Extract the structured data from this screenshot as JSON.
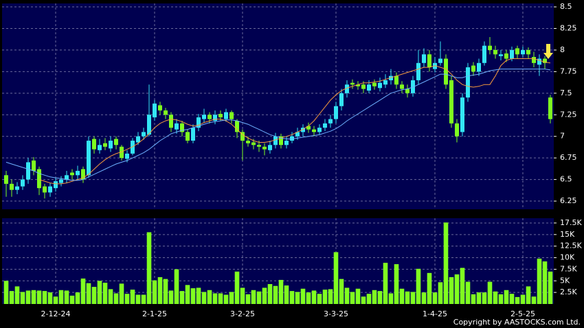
{
  "chart_data": [
    {
      "type": "candlestick",
      "up_color": "#33e6f5",
      "down_color": "#7fff1f",
      "open": [
        6.55,
        6.45,
        6.38,
        6.42,
        6.5,
        6.72,
        6.62,
        6.42,
        6.35,
        6.4,
        6.46,
        6.5,
        6.58,
        6.55,
        6.62,
        6.55,
        6.97,
        6.84,
        6.92,
        6.86,
        6.97,
        6.88,
        6.74,
        6.8,
        6.93,
        7.0,
        7.02,
        7.22,
        7.36,
        7.3,
        7.25,
        7.08,
        7.15,
        7.05,
        6.95,
        7.1,
        7.2,
        7.25,
        7.18,
        7.26,
        7.2,
        7.28,
        7.18,
        7.05,
        6.95,
        6.93,
        6.9,
        6.88,
        6.84,
        6.9,
        7.0,
        6.9,
        6.95,
        7.0,
        7.05,
        7.12,
        7.08,
        7.05,
        7.1,
        7.15,
        7.2,
        7.35,
        7.5,
        7.62,
        7.6,
        7.6,
        7.53,
        7.62,
        7.56,
        7.6,
        7.65,
        7.7,
        7.6,
        7.55,
        7.5,
        7.65,
        7.85,
        7.95,
        7.78,
        7.85,
        7.9,
        7.65,
        7.15,
        7.05,
        7.45,
        7.82,
        7.75,
        7.85,
        8.05,
        8.0,
        7.93,
        7.96,
        7.9,
        8.02,
        7.95,
        8.0,
        7.92,
        7.83,
        7.9,
        7.45
      ],
      "high": [
        6.6,
        6.5,
        6.47,
        6.55,
        6.75,
        6.76,
        6.65,
        6.45,
        6.46,
        6.52,
        6.54,
        6.6,
        6.62,
        6.66,
        6.65,
        7.0,
        7.0,
        6.97,
        6.98,
        7.0,
        7.0,
        6.9,
        6.84,
        6.98,
        7.05,
        7.1,
        7.6,
        7.42,
        7.4,
        7.33,
        7.28,
        7.2,
        7.18,
        7.08,
        7.14,
        7.26,
        7.32,
        7.28,
        7.3,
        7.3,
        7.32,
        7.3,
        7.2,
        7.08,
        7.0,
        6.97,
        6.95,
        6.92,
        6.95,
        7.04,
        7.03,
        7.0,
        7.05,
        7.1,
        7.14,
        7.16,
        7.12,
        7.14,
        7.2,
        7.25,
        7.4,
        7.55,
        7.65,
        7.66,
        7.64,
        7.64,
        7.65,
        7.66,
        7.68,
        7.72,
        7.78,
        7.74,
        7.64,
        7.6,
        7.7,
        8.0,
        8.02,
        8.0,
        7.92,
        8.1,
        7.95,
        7.7,
        7.2,
        7.5,
        7.85,
        7.86,
        7.9,
        8.1,
        8.15,
        8.05,
        8.0,
        8.0,
        8.04,
        8.05,
        8.04,
        8.03,
        7.98,
        7.95,
        7.93,
        7.48
      ],
      "low": [
        6.3,
        6.3,
        6.33,
        6.38,
        6.45,
        6.55,
        6.32,
        6.28,
        6.3,
        6.36,
        6.42,
        6.46,
        6.5,
        6.5,
        6.46,
        6.52,
        6.8,
        6.8,
        6.84,
        6.82,
        6.85,
        6.72,
        6.7,
        6.78,
        6.9,
        6.96,
        7.0,
        7.18,
        7.25,
        7.2,
        7.05,
        7.03,
        7.0,
        6.92,
        6.92,
        7.06,
        7.16,
        7.15,
        7.14,
        7.18,
        7.17,
        7.15,
        6.98,
        6.72,
        6.88,
        6.85,
        6.82,
        6.78,
        6.8,
        6.86,
        6.86,
        6.86,
        6.92,
        6.96,
        7.0,
        7.04,
        7.0,
        7.02,
        7.06,
        7.1,
        7.15,
        7.3,
        7.45,
        7.55,
        7.54,
        7.5,
        7.5,
        7.54,
        7.52,
        7.56,
        7.6,
        7.55,
        7.5,
        7.45,
        7.46,
        7.6,
        7.8,
        7.75,
        7.74,
        7.82,
        7.55,
        7.1,
        6.93,
        7.0,
        7.4,
        7.7,
        7.7,
        7.82,
        7.95,
        7.9,
        7.88,
        7.86,
        7.87,
        7.9,
        7.92,
        7.9,
        7.8,
        7.7,
        7.78,
        7.15
      ],
      "close": [
        6.45,
        6.38,
        6.42,
        6.5,
        6.7,
        6.6,
        6.4,
        6.35,
        6.42,
        6.48,
        6.5,
        6.55,
        6.55,
        6.6,
        6.5,
        6.95,
        6.85,
        6.9,
        6.88,
        6.95,
        6.9,
        6.75,
        6.8,
        6.95,
        7.0,
        7.05,
        7.25,
        7.38,
        7.3,
        7.25,
        7.1,
        7.15,
        7.05,
        6.95,
        7.1,
        7.22,
        7.25,
        7.2,
        7.25,
        7.22,
        7.28,
        7.2,
        7.05,
        6.95,
        6.92,
        6.9,
        6.88,
        6.85,
        6.9,
        7.0,
        6.9,
        6.95,
        7.0,
        7.05,
        7.1,
        7.08,
        7.05,
        7.1,
        7.15,
        7.2,
        7.35,
        7.5,
        7.6,
        7.6,
        7.58,
        7.55,
        7.6,
        7.58,
        7.62,
        7.65,
        7.7,
        7.6,
        7.55,
        7.5,
        7.65,
        7.85,
        7.95,
        7.8,
        7.85,
        7.9,
        7.6,
        7.15,
        7.0,
        7.45,
        7.8,
        7.75,
        7.85,
        8.05,
        8.0,
        7.95,
        7.95,
        7.9,
        8.0,
        7.95,
        8.0,
        7.95,
        7.85,
        7.9,
        7.85,
        7.2
      ],
      "series": [
        {
          "color": "#f59a3c",
          "values": [
            null,
            null,
            null,
            null,
            null,
            null,
            6.5,
            6.48,
            6.46,
            6.45,
            6.45,
            6.46,
            6.48,
            6.5,
            6.52,
            6.56,
            6.62,
            6.68,
            6.73,
            6.77,
            6.8,
            6.82,
            6.85,
            6.88,
            6.92,
            6.97,
            7.03,
            7.1,
            7.15,
            7.18,
            7.2,
            7.19,
            7.17,
            7.14,
            7.12,
            7.13,
            7.16,
            7.18,
            7.2,
            7.2,
            7.18,
            7.14,
            7.08,
            7.02,
            6.98,
            6.95,
            6.93,
            6.93,
            6.94,
            6.96,
            6.98,
            7.0,
            7.02,
            7.05,
            7.08,
            7.12,
            7.18,
            7.26,
            7.34,
            7.42,
            7.48,
            7.53,
            7.56,
            7.58,
            7.6,
            7.62,
            7.62,
            7.63,
            7.64,
            7.66,
            7.68,
            7.7,
            7.72,
            7.74,
            7.76,
            7.78,
            7.8,
            7.8,
            7.82,
            7.8,
            7.78,
            7.72,
            7.65,
            7.6,
            7.58,
            7.57,
            7.58,
            7.6,
            7.6,
            7.7,
            7.82,
            7.88,
            7.9,
            7.9,
            7.9,
            7.9,
            7.9,
            7.88,
            7.86,
            7.85
          ]
        },
        {
          "color": "#6fb2ff",
          "values": [
            6.7,
            6.68,
            6.66,
            6.64,
            6.62,
            6.6,
            6.57,
            6.55,
            6.53,
            6.52,
            6.51,
            6.5,
            6.49,
            6.49,
            6.5,
            6.53,
            6.56,
            6.59,
            6.62,
            6.65,
            6.68,
            6.7,
            6.72,
            6.75,
            6.78,
            6.81,
            6.85,
            6.9,
            6.95,
            6.99,
            7.03,
            7.05,
            7.07,
            7.08,
            7.1,
            7.12,
            7.14,
            7.16,
            7.17,
            7.18,
            7.19,
            7.19,
            7.18,
            7.16,
            7.14,
            7.11,
            7.08,
            7.05,
            7.02,
            7.0,
            6.98,
            6.97,
            6.97,
            6.98,
            6.99,
            7.0,
            7.01,
            7.02,
            7.04,
            7.06,
            7.09,
            7.13,
            7.18,
            7.22,
            7.26,
            7.3,
            7.34,
            7.38,
            7.42,
            7.46,
            7.5,
            7.52,
            7.54,
            7.55,
            7.57,
            7.6,
            7.63,
            7.66,
            7.69,
            7.72,
            7.72,
            7.7,
            7.68,
            7.68,
            7.7,
            7.71,
            7.72,
            7.74,
            7.76,
            7.77,
            7.78,
            7.78,
            7.78,
            7.78,
            7.78,
            7.78,
            7.78,
            7.78,
            7.78,
            7.77
          ]
        }
      ],
      "ylim": [
        6.155,
        8.54
      ],
      "yticks": [
        6.25,
        6.5,
        6.75,
        7,
        7.25,
        7.5,
        7.75,
        8,
        8.25,
        8.5
      ],
      "grid": true
    },
    {
      "type": "bar",
      "color": "#80ff20",
      "categories": [
        null,
        null,
        null,
        null,
        null,
        null,
        null,
        null,
        null,
        "2-12-24",
        null,
        null,
        null,
        null,
        null,
        null,
        null,
        null,
        null,
        null,
        null,
        null,
        null,
        null,
        null,
        null,
        null,
        "2-1-25",
        null,
        null,
        null,
        null,
        null,
        null,
        null,
        null,
        null,
        null,
        null,
        null,
        null,
        null,
        null,
        "3-2-25",
        null,
        null,
        null,
        null,
        null,
        null,
        null,
        null,
        null,
        null,
        null,
        null,
        null,
        null,
        null,
        null,
        "3-3-25",
        null,
        null,
        null,
        null,
        null,
        null,
        null,
        null,
        null,
        null,
        null,
        null,
        null,
        null,
        null,
        null,
        null,
        "1-4-25",
        null,
        null,
        null,
        null,
        null,
        null,
        null,
        null,
        null,
        null,
        null,
        null,
        null,
        null,
        null,
        "2-5-25",
        null,
        null,
        null,
        null,
        null
      ],
      "values": [
        5000,
        2800,
        3800,
        2600,
        2900,
        3000,
        2900,
        2800,
        2500,
        1600,
        3000,
        2900,
        1800,
        2500,
        5500,
        4500,
        3700,
        5000,
        4600,
        3200,
        2300,
        4400,
        2200,
        3100,
        2000,
        2000,
        15500,
        5100,
        5800,
        5400,
        2900,
        7500,
        2800,
        4100,
        3400,
        3500,
        2600,
        3000,
        2300,
        2300,
        2000,
        2600,
        7000,
        3500,
        2100,
        3000,
        2700,
        3500,
        4300,
        3900,
        5200,
        4000,
        2800,
        2600,
        3300,
        2500,
        2900,
        2200,
        3100,
        3200,
        11200,
        5400,
        3500,
        2600,
        3300,
        1600,
        2200,
        3000,
        2800,
        8900,
        2300,
        8600,
        3300,
        2700,
        2600,
        7600,
        2500,
        6700,
        2500,
        4700,
        17600,
        5800,
        6400,
        7800,
        4800,
        2100,
        2500,
        2500,
        4800,
        2700,
        2100,
        3000,
        2200,
        1500,
        2000,
        3800,
        1600,
        9800,
        9200,
        7000
      ],
      "ylim": [
        0,
        18530
      ],
      "yticks": [
        {
          "value": 2500,
          "label": "2.5K"
        },
        {
          "value": 5000,
          "label": "5K"
        },
        {
          "value": 7500,
          "label": "7.5K"
        },
        {
          "value": 10000,
          "label": "10K"
        },
        {
          "value": 12500,
          "label": "12.5K"
        },
        {
          "value": 15000,
          "label": "15K"
        },
        {
          "value": 17500,
          "label": "17.5K"
        }
      ],
      "grid": true
    }
  ],
  "copyright": "Copyright by AASTOCKS.com Ltd."
}
